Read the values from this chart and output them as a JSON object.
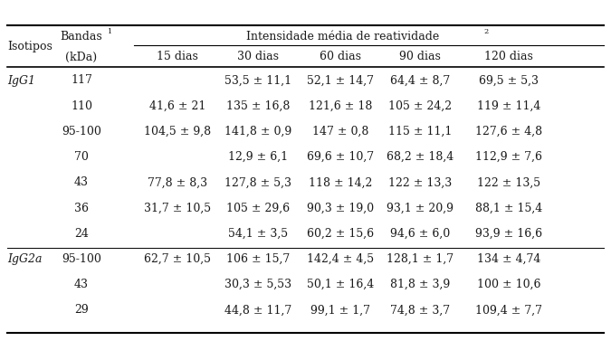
{
  "col_isotipos_header": "Isotipos",
  "col_bandas_header": "Bandas",
  "col_bandas_sup": "1",
  "col_bandas_unit": "(kDa)",
  "col_imr_header": "Intensidade média de reatividade",
  "col_imr_sup": "2",
  "day_headers": [
    "15 dias",
    "30 dias",
    "60 dias",
    "90 dias",
    "120 dias"
  ],
  "rows": [
    {
      "isotype": "IgG1",
      "band": "117",
      "d15": "",
      "d30": "53,5 ± 11,1",
      "d60": "52,1 ± 14,7",
      "d90": "64,4 ± 8,7",
      "d120": "69,5 ± 5,3"
    },
    {
      "isotype": "",
      "band": "110",
      "d15": "41,6 ± 21",
      "d30": "135 ± 16,8",
      "d60": "121,6 ± 18",
      "d90": "105 ± 24,2",
      "d120": "119 ± 11,4"
    },
    {
      "isotype": "",
      "band": "95-100",
      "d15": "104,5 ± 9,8",
      "d30": "141,8 ± 0,9",
      "d60": "147 ± 0,8",
      "d90": "115 ± 11,1",
      "d120": "127,6 ± 4,8"
    },
    {
      "isotype": "",
      "band": "70",
      "d15": "",
      "d30": "12,9 ± 6,1",
      "d60": "69,6 ± 10,7",
      "d90": "68,2 ± 18,4",
      "d120": "112,9 ± 7,6"
    },
    {
      "isotype": "",
      "band": "43",
      "d15": "77,8 ± 8,3",
      "d30": "127,8 ± 5,3",
      "d60": "118 ± 14,2",
      "d90": "122 ± 13,3",
      "d120": "122 ± 13,5"
    },
    {
      "isotype": "",
      "band": "36",
      "d15": "31,7 ± 10,5",
      "d30": "105 ± 29,6",
      "d60": "90,3 ± 19,0",
      "d90": "93,1 ± 20,9",
      "d120": "88,1 ± 15,4"
    },
    {
      "isotype": "",
      "band": "24",
      "d15": "",
      "d30": "54,1 ± 3,5",
      "d60": "60,2 ± 15,6",
      "d90": "94,6 ± 6,0",
      "d120": "93,9 ± 16,6"
    },
    {
      "isotype": "IgG2a",
      "band": "95-100",
      "d15": "62,7 ± 10,5",
      "d30": "106 ± 15,7",
      "d60": "142,4 ± 4,5",
      "d90": "128,1 ± 1,7",
      "d120": "134 ± 4,74"
    },
    {
      "isotype": "",
      "band": "43",
      "d15": "",
      "d30": "30,3 ± 5,53",
      "d60": "50,1 ± 16,4",
      "d90": "81,8 ± 3,9",
      "d120": "100 ± 10,6"
    },
    {
      "isotype": "",
      "band": "29",
      "d15": "",
      "d30": "44,8 ± 11,7",
      "d60": "99,1 ± 1,7",
      "d90": "74,8 ± 3,7",
      "d120": "109,4 ± 7,7"
    }
  ],
  "fig_width": 6.75,
  "fig_height": 3.77,
  "dpi": 100,
  "font_size": 9.0,
  "bg_color": "#ffffff",
  "text_color": "#1a1a1a",
  "line_color": "#000000"
}
